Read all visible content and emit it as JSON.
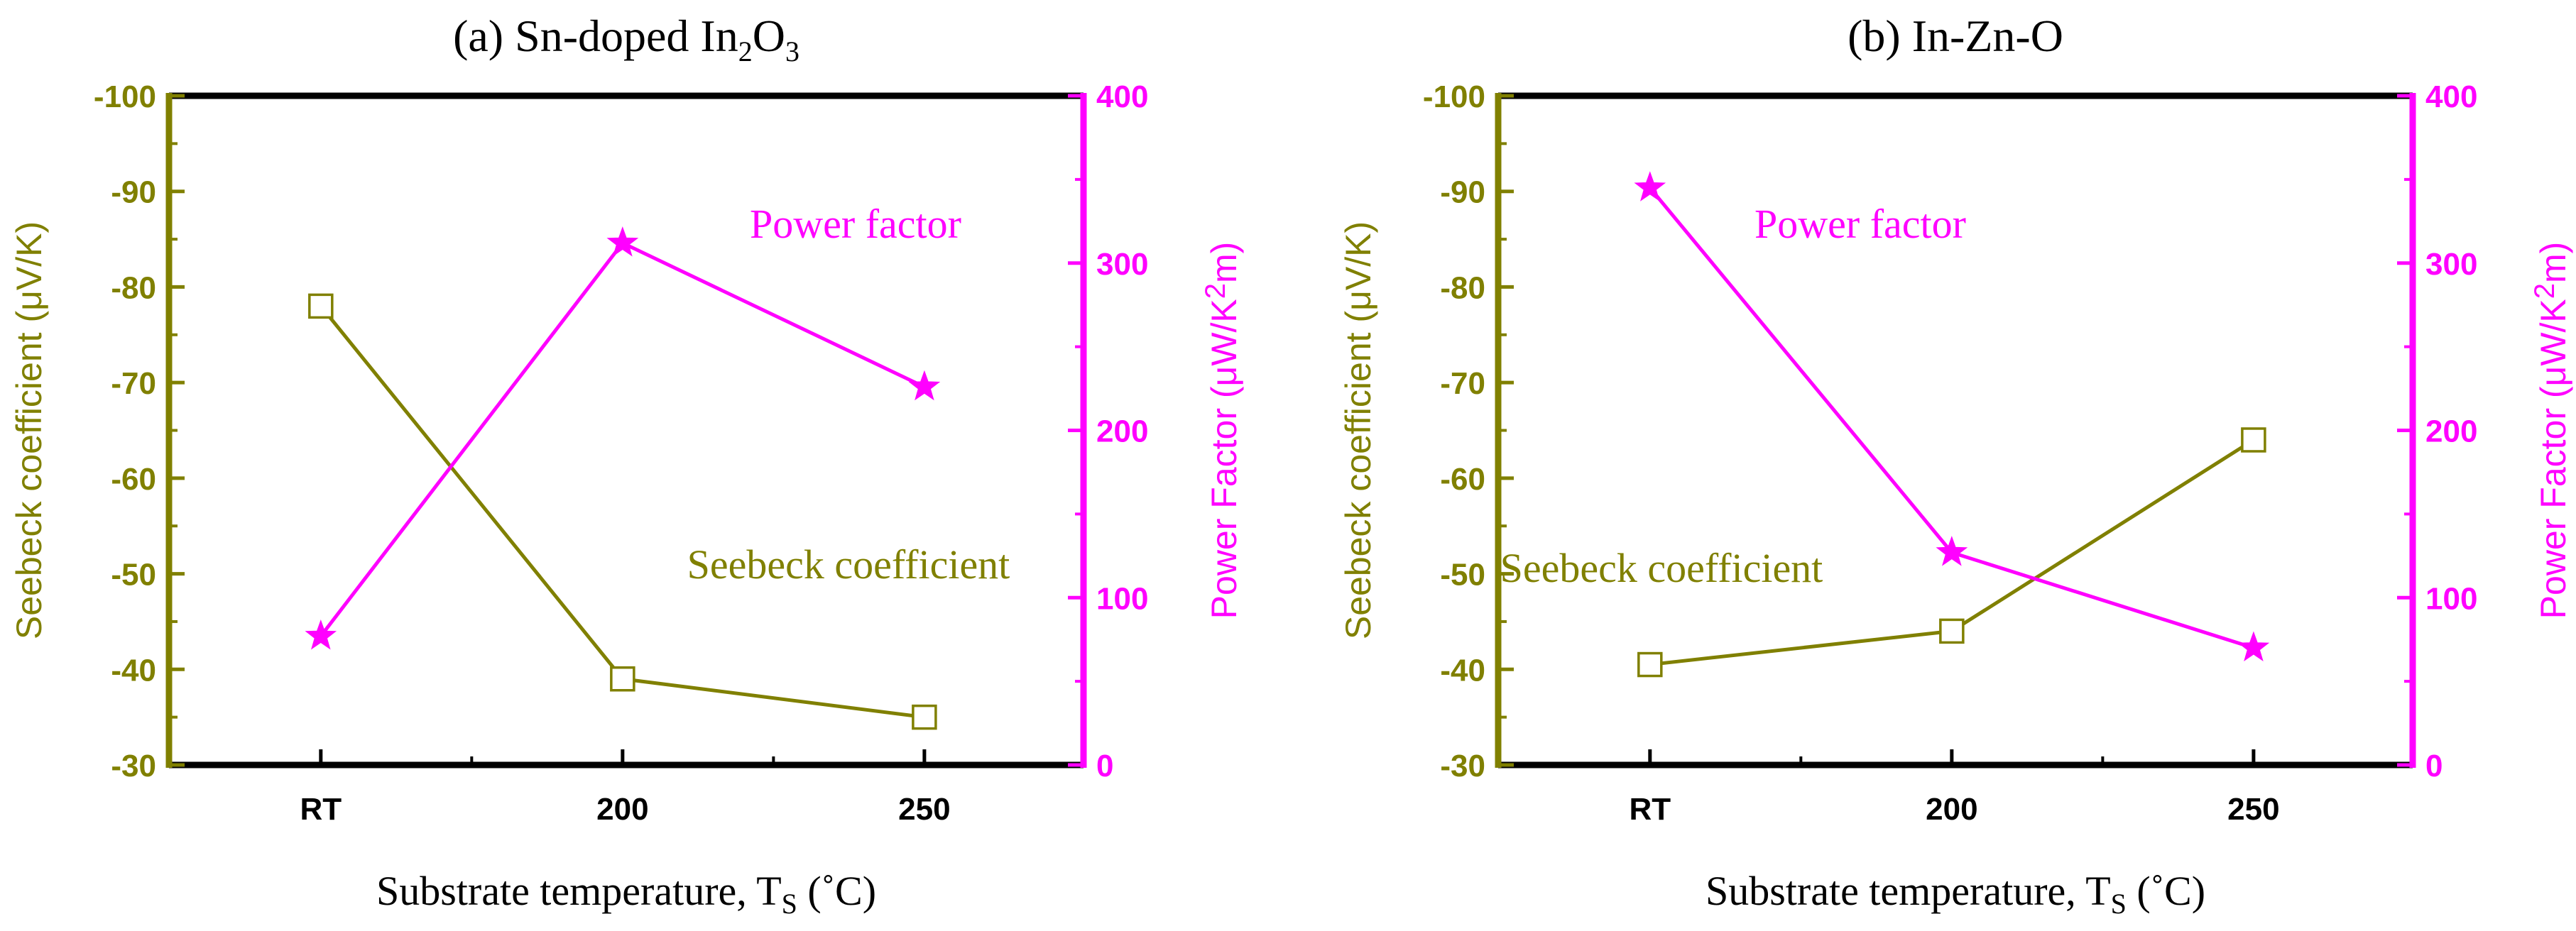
{
  "colors": {
    "seebeck": "#808000",
    "power": "#ff00ff",
    "frame": "#000000"
  },
  "chart_data": [
    {
      "type": "line",
      "title": "(a) Sn-doped In2O3",
      "title_parts": {
        "main": "(a) Sn-doped In",
        "sub1": "2",
        "mid": "O",
        "sub2": "3"
      },
      "xlabel": "Substrate temperature, TS (˚C)",
      "xlabel_parts": {
        "main": "Substrate temperature, T",
        "sub": "S",
        "tail": " (˚C)"
      },
      "categories": [
        "RT",
        "200",
        "250"
      ],
      "ylabel_left": "Seebeck coefficient (μV/K)",
      "ylabel_right": "Power Factor (μW/K2m)",
      "ylabel_right_parts": {
        "main": "Power Factor (μW/K",
        "sup": "2",
        "tail": "m)"
      },
      "ylim_left": [
        -30,
        -100
      ],
      "yticks_left": [
        "-100",
        "-90",
        "-80",
        "-70",
        "-60",
        "-50",
        "-40",
        "-30"
      ],
      "ylim_right": [
        0,
        400
      ],
      "yticks_right": [
        "400",
        "300",
        "200",
        "100",
        "0"
      ],
      "series": [
        {
          "name": "Seebeck coefficient",
          "axis": "left",
          "marker": "open-square",
          "values": [
            -78,
            -39,
            -35
          ]
        },
        {
          "name": "Power factor",
          "axis": "right",
          "marker": "star",
          "values": [
            77,
            312,
            226
          ]
        }
      ],
      "annotations": [
        {
          "text": "Power factor",
          "series": "Power factor"
        },
        {
          "text": "Seebeck coefficient",
          "series": "Seebeck coefficient"
        }
      ]
    },
    {
      "type": "line",
      "title": "(b) In-Zn-O",
      "title_parts": {
        "main": "(b) In-Zn-O",
        "sub1": "",
        "mid": "",
        "sub2": ""
      },
      "xlabel": "Substrate temperature, TS (˚C)",
      "xlabel_parts": {
        "main": "Substrate temperature, T",
        "sub": "S",
        "tail": " (˚C)"
      },
      "categories": [
        "RT",
        "200",
        "250"
      ],
      "ylabel_left": "Seebeck coefficient (μV/K)",
      "ylabel_right": "Power Factor (μW/K2m)",
      "ylabel_right_parts": {
        "main": "Power Factor (μW/K",
        "sup": "2",
        "tail": "m)"
      },
      "ylim_left": [
        -30,
        -100
      ],
      "yticks_left": [
        "-100",
        "-90",
        "-80",
        "-70",
        "-60",
        "-50",
        "-40",
        "-30"
      ],
      "ylim_right": [
        0,
        400
      ],
      "yticks_right": [
        "400",
        "300",
        "200",
        "100",
        "0"
      ],
      "series": [
        {
          "name": "Seebeck coefficient",
          "axis": "left",
          "marker": "open-square",
          "values": [
            -40.5,
            -44,
            -64
          ]
        },
        {
          "name": "Power factor",
          "axis": "right",
          "marker": "star",
          "values": [
            345,
            127,
            70
          ]
        }
      ],
      "annotations": [
        {
          "text": "Power factor",
          "series": "Power factor"
        },
        {
          "text": "Seebeck coefficient",
          "series": "Seebeck coefficient"
        }
      ]
    }
  ]
}
